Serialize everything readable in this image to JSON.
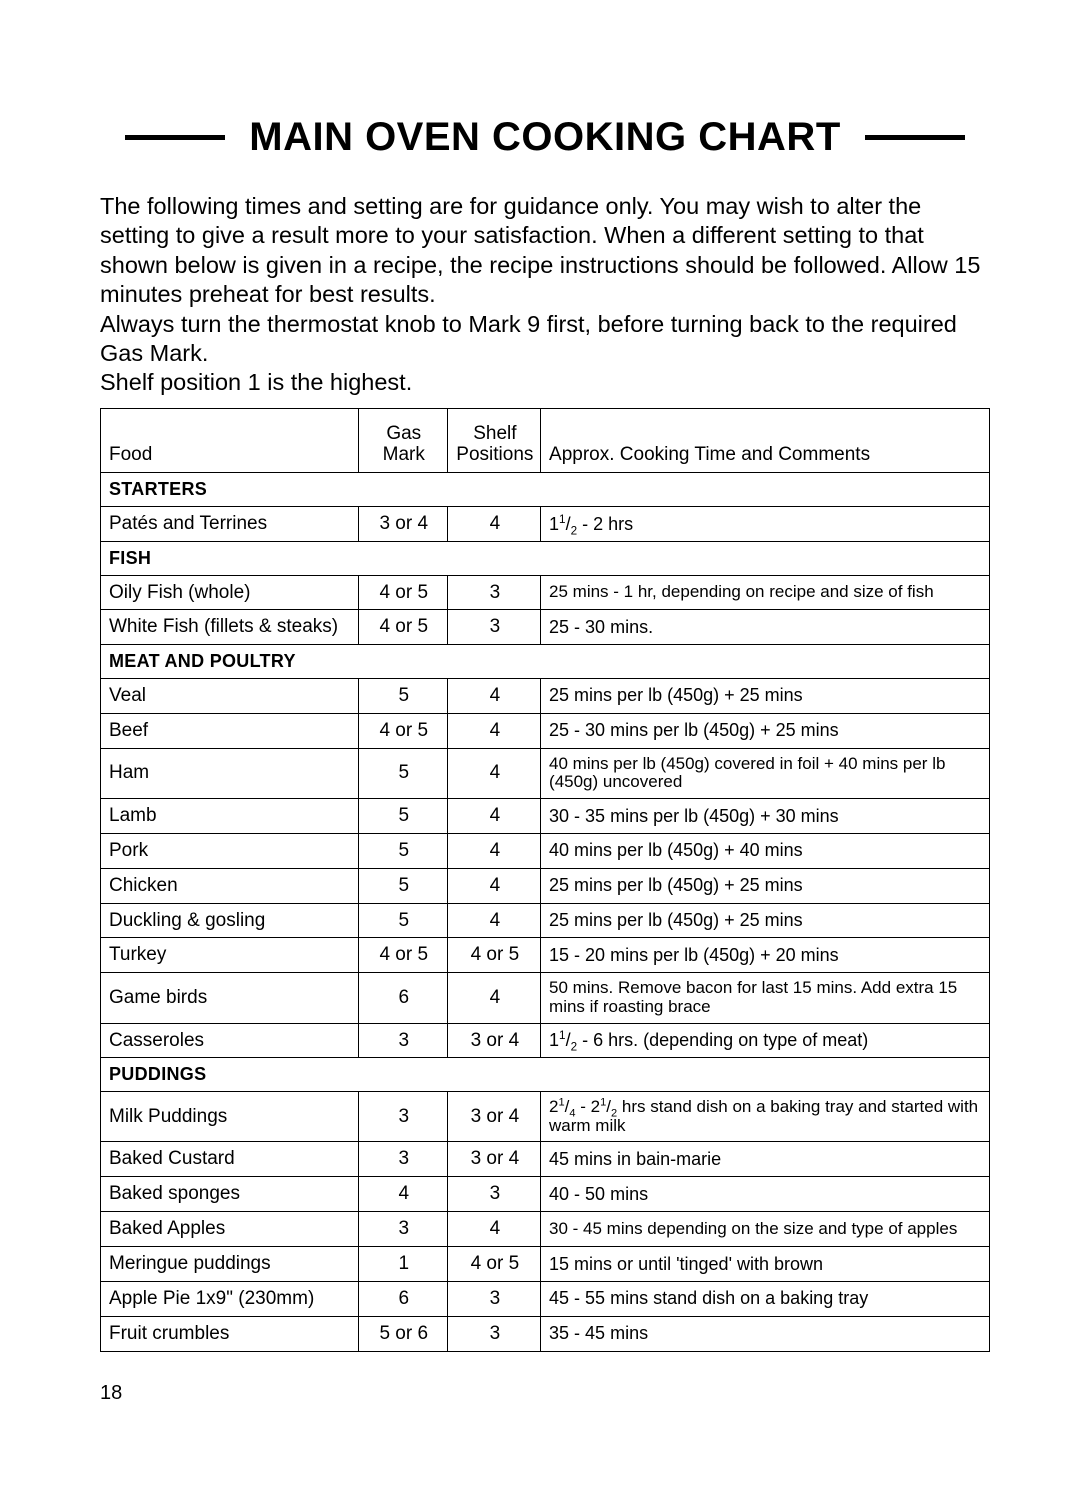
{
  "title": "MAIN OVEN COOKING CHART",
  "intro": [
    "The following times and setting are for guidance only. You may wish to alter the setting to give a result more to your satisfaction. When a different setting to that shown below is given in a recipe, the recipe instructions should be followed. Allow 15 minutes preheat for best results.",
    "Always turn the thermostat knob to Mark 9 first, before turning back to the required Gas Mark.",
    "Shelf position 1 is the highest."
  ],
  "columns": {
    "food": "Food",
    "gas": "Gas\nMark",
    "shelf": "Shelf\nPositions",
    "comments": "Approx. Cooking Time and Comments"
  },
  "sections": [
    {
      "name": "Starters",
      "rows": [
        {
          "food": "Patés and Terrines",
          "gas": "3 or 4",
          "shelf": "4",
          "comments_html": "1<sup>1</sup>/<sub>2</sub> - 2 hrs"
        }
      ]
    },
    {
      "name": "Fish",
      "rows": [
        {
          "food": "Oily Fish (whole)",
          "gas": "4 or 5",
          "shelf": "3",
          "comments": "25 mins - 1 hr, depending on recipe and size of fish",
          "small": true
        },
        {
          "food": "White Fish (fillets & steaks)",
          "gas": "4 or 5",
          "shelf": "3",
          "comments": "25 - 30 mins."
        }
      ]
    },
    {
      "name": "Meat and Poultry",
      "rows": [
        {
          "food": "Veal",
          "gas": "5",
          "shelf": "4",
          "comments": "25 mins per lb (450g) + 25 mins"
        },
        {
          "food": "Beef",
          "gas": "4 or 5",
          "shelf": "4",
          "comments": "25 - 30 mins per lb (450g) + 25 mins"
        },
        {
          "food": "Ham",
          "gas": "5",
          "shelf": "4",
          "comments": "40 mins per lb (450g) covered in foil + 40 mins per lb (450g) uncovered",
          "small": true
        },
        {
          "food": "Lamb",
          "gas": "5",
          "shelf": "4",
          "comments": "30 - 35 mins per lb (450g) + 30 mins"
        },
        {
          "food": "Pork",
          "gas": "5",
          "shelf": "4",
          "comments": "40 mins per lb (450g) + 40 mins"
        },
        {
          "food": "Chicken",
          "gas": "5",
          "shelf": "4",
          "comments": "25 mins per lb (450g) + 25 mins"
        },
        {
          "food": "Duckling & gosling",
          "gas": "5",
          "shelf": "4",
          "comments": "25 mins per lb (450g) + 25 mins"
        },
        {
          "food": "Turkey",
          "gas": "4 or 5",
          "shelf": "4 or 5",
          "comments": "15 - 20 mins per lb (450g) + 20 mins"
        },
        {
          "food": "Game birds",
          "gas": "6",
          "shelf": "4",
          "comments": "50 mins. Remove bacon for last 15 mins. Add extra 15 mins if roasting brace",
          "small": true
        },
        {
          "food": "Casseroles",
          "gas": "3",
          "shelf": "3 or 4",
          "comments_html": "1<sup>1</sup>/<sub>2</sub> - 6 hrs. (depending on type of meat)"
        }
      ]
    },
    {
      "name": "Puddings",
      "rows": [
        {
          "food": "Milk Puddings",
          "gas": "3",
          "shelf": "3 or 4",
          "comments_html": "2<sup>1</sup>/<sub>4</sub> - 2<sup>1</sup>/<sub>2</sub> hrs stand dish on a baking tray and started with warm milk",
          "small": true
        },
        {
          "food": "Baked Custard",
          "gas": "3",
          "shelf": "3 or 4",
          "comments": "45 mins in bain-marie"
        },
        {
          "food": "Baked sponges",
          "gas": "4",
          "shelf": "3",
          "comments": "40 - 50 mins"
        },
        {
          "food": "Baked Apples",
          "gas": "3",
          "shelf": "4",
          "comments": "30 - 45 mins depending on the size and type of apples",
          "small": true
        },
        {
          "food": "Meringue puddings",
          "gas": "1",
          "shelf": "4 or 5",
          "comments": "15 mins or until 'tinged' with brown"
        },
        {
          "food": "Apple Pie 1x9\" (230mm)",
          "gas": "6",
          "shelf": "3",
          "comments": "45 - 55 mins stand dish on a baking tray"
        },
        {
          "food": "Fruit crumbles",
          "gas": "5 or 6",
          "shelf": "3",
          "comments": "35 - 45 mins"
        }
      ]
    }
  ],
  "page_number": "18",
  "style": {
    "background": "#ffffff",
    "text_color": "#000000",
    "border_color": "#000000",
    "title_fontsize": 40,
    "body_fontsize": 23.5,
    "cell_fontsize": 19
  }
}
